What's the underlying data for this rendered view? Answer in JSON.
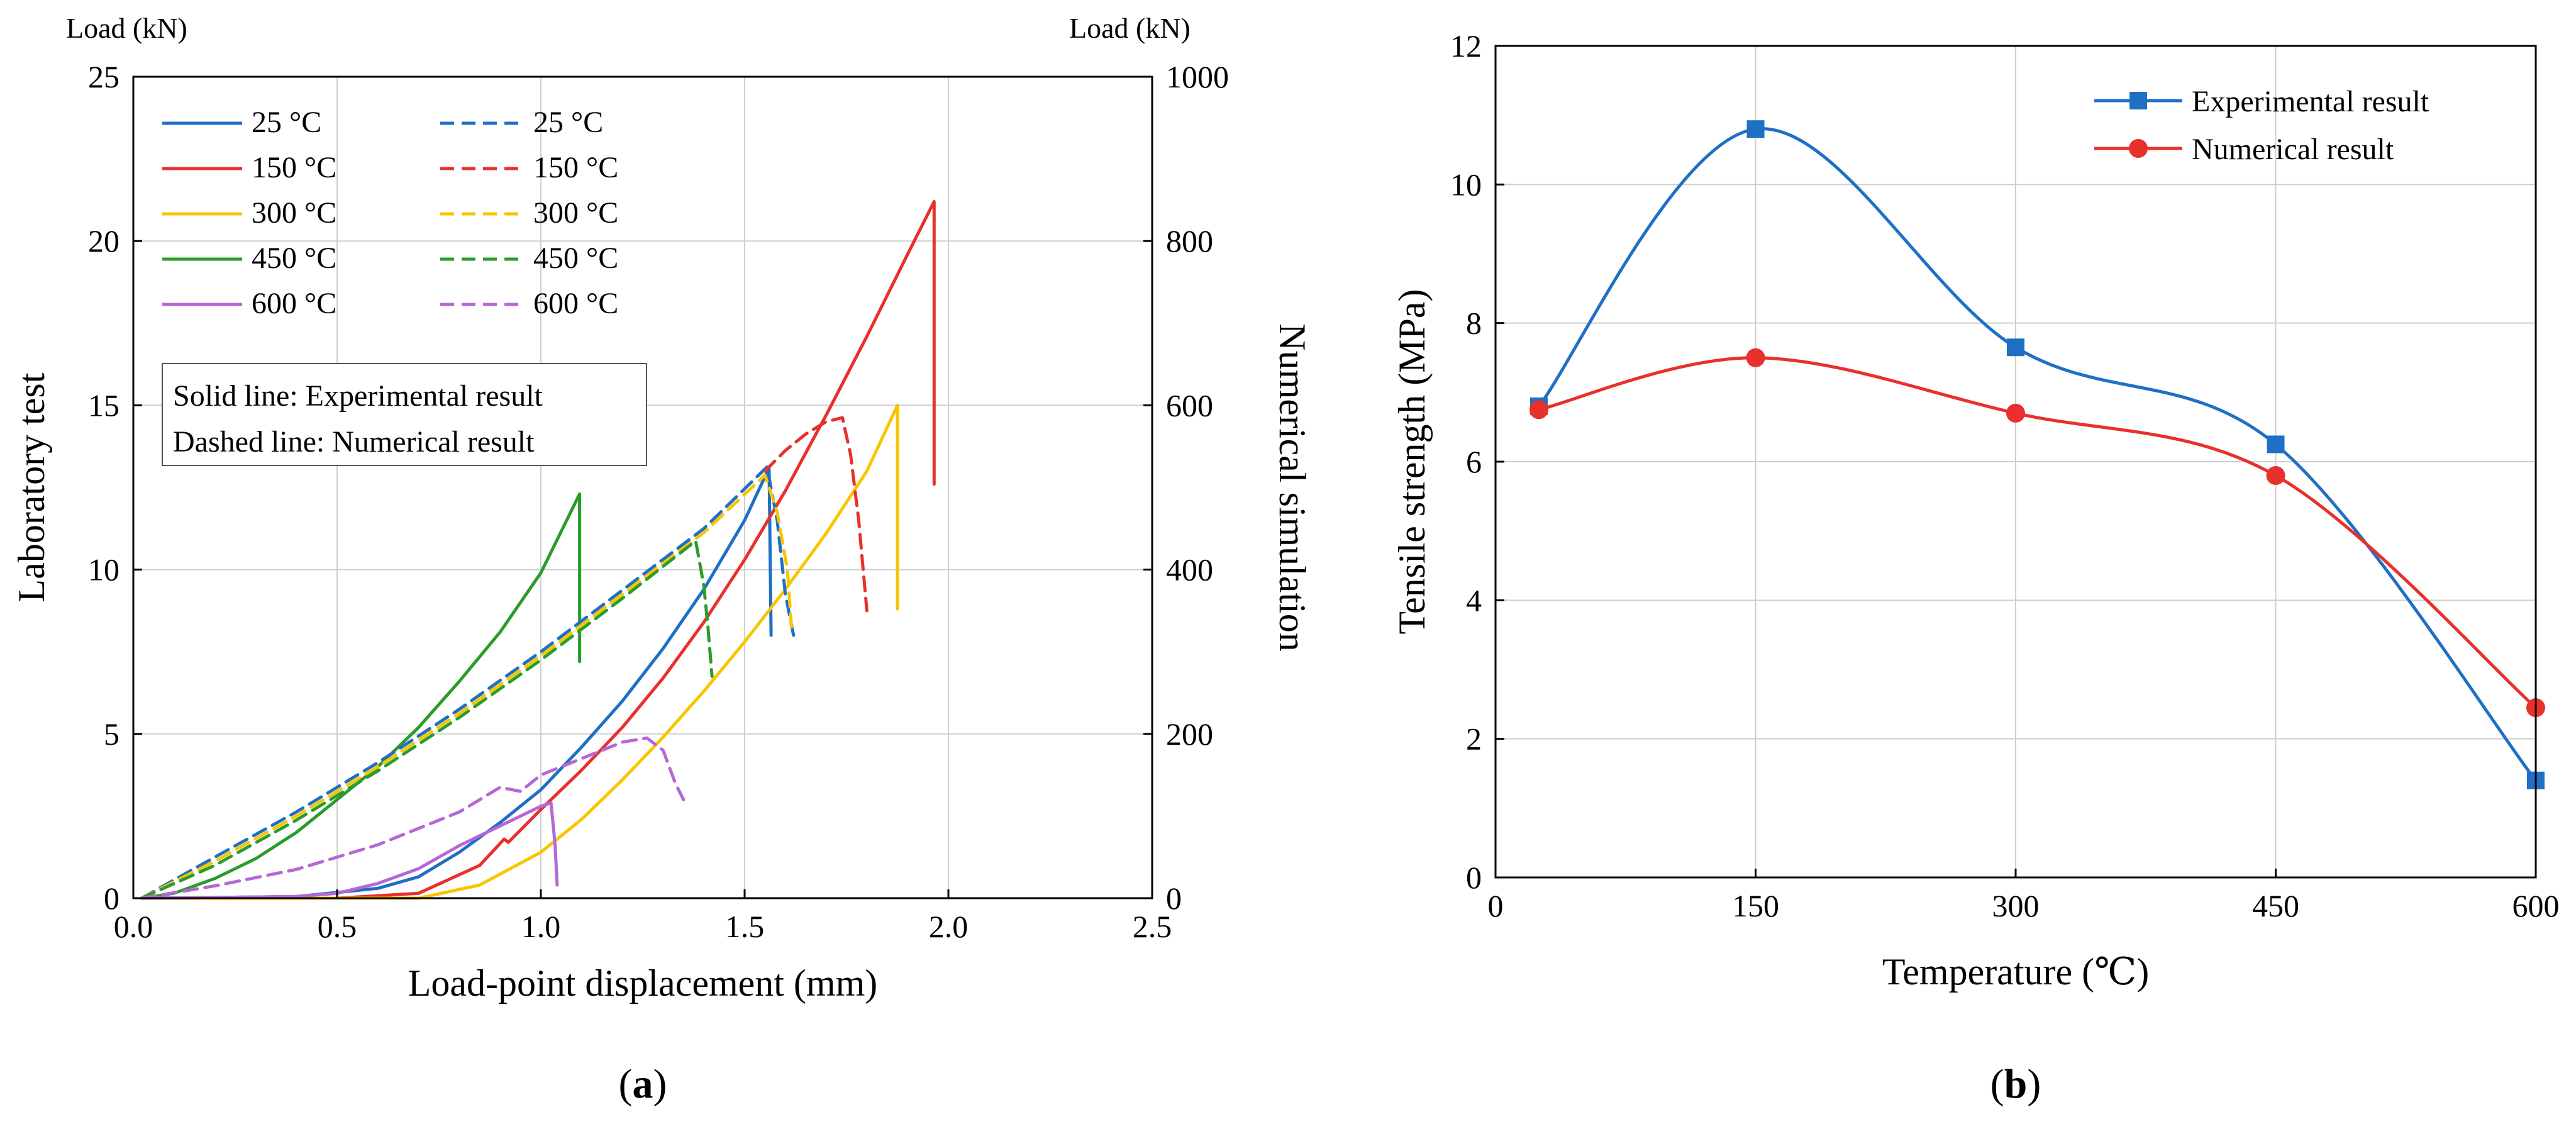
{
  "chart_data": [
    {
      "panel_label": "(a)",
      "panel_letter": "a",
      "type": "line",
      "xlabel": "Load-point displacement (mm)",
      "ylabel_left": "Laboratory test",
      "ylabel_right": "Numerical simulation",
      "unit_left": "Load (kN)",
      "unit_right": "Load (kN)",
      "xlim": [
        0,
        2.5
      ],
      "ylim_left": [
        0,
        25
      ],
      "ylim_right": [
        0,
        1000
      ],
      "x_ticks": [
        "0.0",
        "0.5",
        "1.0",
        "1.5",
        "2.0",
        "2.5"
      ],
      "y_left_ticks": [
        "0",
        "5",
        "10",
        "15",
        "20",
        "25"
      ],
      "y_right_ticks": [
        "0",
        "200",
        "400",
        "600",
        "800",
        "1000"
      ],
      "grid": true,
      "legend_position": "top-left",
      "annotation_lines": [
        "Solid line: Experimental result",
        "Dashed line: Numerical result"
      ],
      "series": [
        {
          "name": "25 °C",
          "style": "solid",
          "axis": "left",
          "color": "#1f6fc5",
          "points": [
            [
              0.02,
              0
            ],
            [
              0.4,
              0.05
            ],
            [
              0.6,
              0.3
            ],
            [
              0.7,
              0.65
            ],
            [
              0.8,
              1.4
            ],
            [
              0.9,
              2.3
            ],
            [
              1.0,
              3.3
            ],
            [
              1.1,
              4.6
            ],
            [
              1.2,
              6.0
            ],
            [
              1.3,
              7.6
            ],
            [
              1.4,
              9.4
            ],
            [
              1.5,
              11.5
            ],
            [
              1.56,
              13.1
            ],
            [
              1.565,
              8.0
            ]
          ]
        },
        {
          "name": "150 °C",
          "style": "solid",
          "axis": "left",
          "color": "#e8302c",
          "points": [
            [
              0.02,
              0
            ],
            [
              0.5,
              0
            ],
            [
              0.7,
              0.15
            ],
            [
              0.85,
              1.0
            ],
            [
              0.91,
              1.8
            ],
            [
              0.92,
              1.7
            ],
            [
              1.0,
              2.7
            ],
            [
              1.1,
              3.9
            ],
            [
              1.2,
              5.2
            ],
            [
              1.3,
              6.7
            ],
            [
              1.4,
              8.4
            ],
            [
              1.5,
              10.3
            ],
            [
              1.6,
              12.4
            ],
            [
              1.7,
              14.7
            ],
            [
              1.8,
              17.1
            ],
            [
              1.9,
              19.6
            ],
            [
              1.965,
              21.2
            ],
            [
              1.965,
              12.6
            ]
          ]
        },
        {
          "name": "300 °C",
          "style": "solid",
          "axis": "left",
          "color": "#f7c600",
          "points": [
            [
              0.02,
              0
            ],
            [
              0.7,
              0
            ],
            [
              0.85,
              0.4
            ],
            [
              1.0,
              1.4
            ],
            [
              1.1,
              2.4
            ],
            [
              1.2,
              3.6
            ],
            [
              1.3,
              4.9
            ],
            [
              1.4,
              6.3
            ],
            [
              1.5,
              7.8
            ],
            [
              1.6,
              9.4
            ],
            [
              1.7,
              11.1
            ],
            [
              1.8,
              13.0
            ],
            [
              1.875,
              15.0
            ],
            [
              1.875,
              8.8
            ]
          ]
        },
        {
          "name": "450 °C",
          "style": "solid",
          "axis": "left",
          "color": "#2a9c2a",
          "points": [
            [
              0.02,
              0
            ],
            [
              0.1,
              0.15
            ],
            [
              0.2,
              0.6
            ],
            [
              0.3,
              1.2
            ],
            [
              0.4,
              2.0
            ],
            [
              0.5,
              3.0
            ],
            [
              0.6,
              4.0
            ],
            [
              0.7,
              5.2
            ],
            [
              0.8,
              6.6
            ],
            [
              0.9,
              8.1
            ],
            [
              1.0,
              9.9
            ],
            [
              1.095,
              12.3
            ],
            [
              1.095,
              7.2
            ]
          ]
        },
        {
          "name": "600 °C",
          "style": "solid",
          "axis": "left",
          "color": "#b667d6",
          "points": [
            [
              0.02,
              0
            ],
            [
              0.4,
              0.05
            ],
            [
              0.5,
              0.15
            ],
            [
              0.6,
              0.45
            ],
            [
              0.7,
              0.9
            ],
            [
              0.8,
              1.6
            ],
            [
              0.9,
              2.2
            ],
            [
              1.0,
              2.8
            ],
            [
              1.025,
              2.9
            ],
            [
              1.035,
              1.6
            ],
            [
              1.04,
              0.4
            ]
          ]
        },
        {
          "name": "25 °C",
          "style": "dashed",
          "axis": "right",
          "color": "#1f6fc5",
          "points": [
            [
              0.02,
              0
            ],
            [
              0.2,
              50
            ],
            [
              0.4,
              105
            ],
            [
              0.6,
              165
            ],
            [
              0.8,
              230
            ],
            [
              1.0,
              300
            ],
            [
              1.2,
              375
            ],
            [
              1.4,
              450
            ],
            [
              1.555,
              525
            ],
            [
              1.58,
              460
            ],
            [
              1.6,
              370
            ],
            [
              1.62,
              320
            ]
          ]
        },
        {
          "name": "150 °C",
          "style": "dashed",
          "axis": "right",
          "color": "#e8302c",
          "points": [
            [
              1.55,
              520
            ],
            [
              1.6,
              545
            ],
            [
              1.65,
              565
            ],
            [
              1.7,
              580
            ],
            [
              1.74,
              585
            ],
            [
              1.76,
              540
            ],
            [
              1.78,
              460
            ],
            [
              1.8,
              350
            ]
          ]
        },
        {
          "name": "300 °C",
          "style": "dashed",
          "axis": "right",
          "color": "#f7c600",
          "points": [
            [
              0.02,
              0
            ],
            [
              0.2,
              45
            ],
            [
              0.4,
              100
            ],
            [
              0.6,
              160
            ],
            [
              0.8,
              225
            ],
            [
              1.0,
              295
            ],
            [
              1.2,
              370
            ],
            [
              1.4,
              445
            ],
            [
              1.55,
              515
            ],
            [
              1.58,
              470
            ],
            [
              1.605,
              400
            ],
            [
              1.615,
              330
            ]
          ]
        },
        {
          "name": "450 °C",
          "style": "dashed",
          "axis": "right",
          "color": "#2a9c2a",
          "points": [
            [
              0.02,
              0
            ],
            [
              0.2,
              40
            ],
            [
              0.4,
              95
            ],
            [
              0.6,
              155
            ],
            [
              0.8,
              220
            ],
            [
              1.0,
              290
            ],
            [
              1.2,
              365
            ],
            [
              1.38,
              435
            ],
            [
              1.4,
              380
            ],
            [
              1.41,
              330
            ],
            [
              1.42,
              270
            ]
          ]
        },
        {
          "name": "600 °C",
          "style": "dashed",
          "axis": "right",
          "color": "#b667d6",
          "points": [
            [
              0.02,
              0
            ],
            [
              0.2,
              15
            ],
            [
              0.4,
              35
            ],
            [
              0.6,
              65
            ],
            [
              0.8,
              105
            ],
            [
              0.9,
              135
            ],
            [
              0.95,
              130
            ],
            [
              1.0,
              150
            ],
            [
              1.1,
              170
            ],
            [
              1.2,
              190
            ],
            [
              1.26,
              195
            ],
            [
              1.3,
              180
            ],
            [
              1.33,
              140
            ],
            [
              1.35,
              120
            ]
          ]
        }
      ]
    },
    {
      "panel_label": "(b)",
      "panel_letter": "b",
      "type": "line",
      "xlabel": "Temperature (℃)",
      "ylabel": "Tensile strength (MPa)",
      "xlim": [
        0,
        600
      ],
      "ylim": [
        0,
        12
      ],
      "x_ticks": [
        "0",
        "150",
        "300",
        "450",
        "600"
      ],
      "y_ticks": [
        "0",
        "2",
        "4",
        "6",
        "8",
        "10",
        "12"
      ],
      "grid": true,
      "legend_position": "top-right",
      "series": [
        {
          "name": "Experimental result",
          "color": "#1f6fc5",
          "marker": "square",
          "x": [
            25,
            150,
            300,
            450,
            600
          ],
          "values": [
            6.8,
            10.8,
            7.65,
            6.25,
            1.4
          ]
        },
        {
          "name": "Numerical result",
          "color": "#e8302c",
          "marker": "circle",
          "x": [
            25,
            150,
            300,
            450,
            600
          ],
          "values": [
            6.75,
            7.5,
            6.7,
            5.8,
            2.45
          ]
        }
      ]
    }
  ]
}
